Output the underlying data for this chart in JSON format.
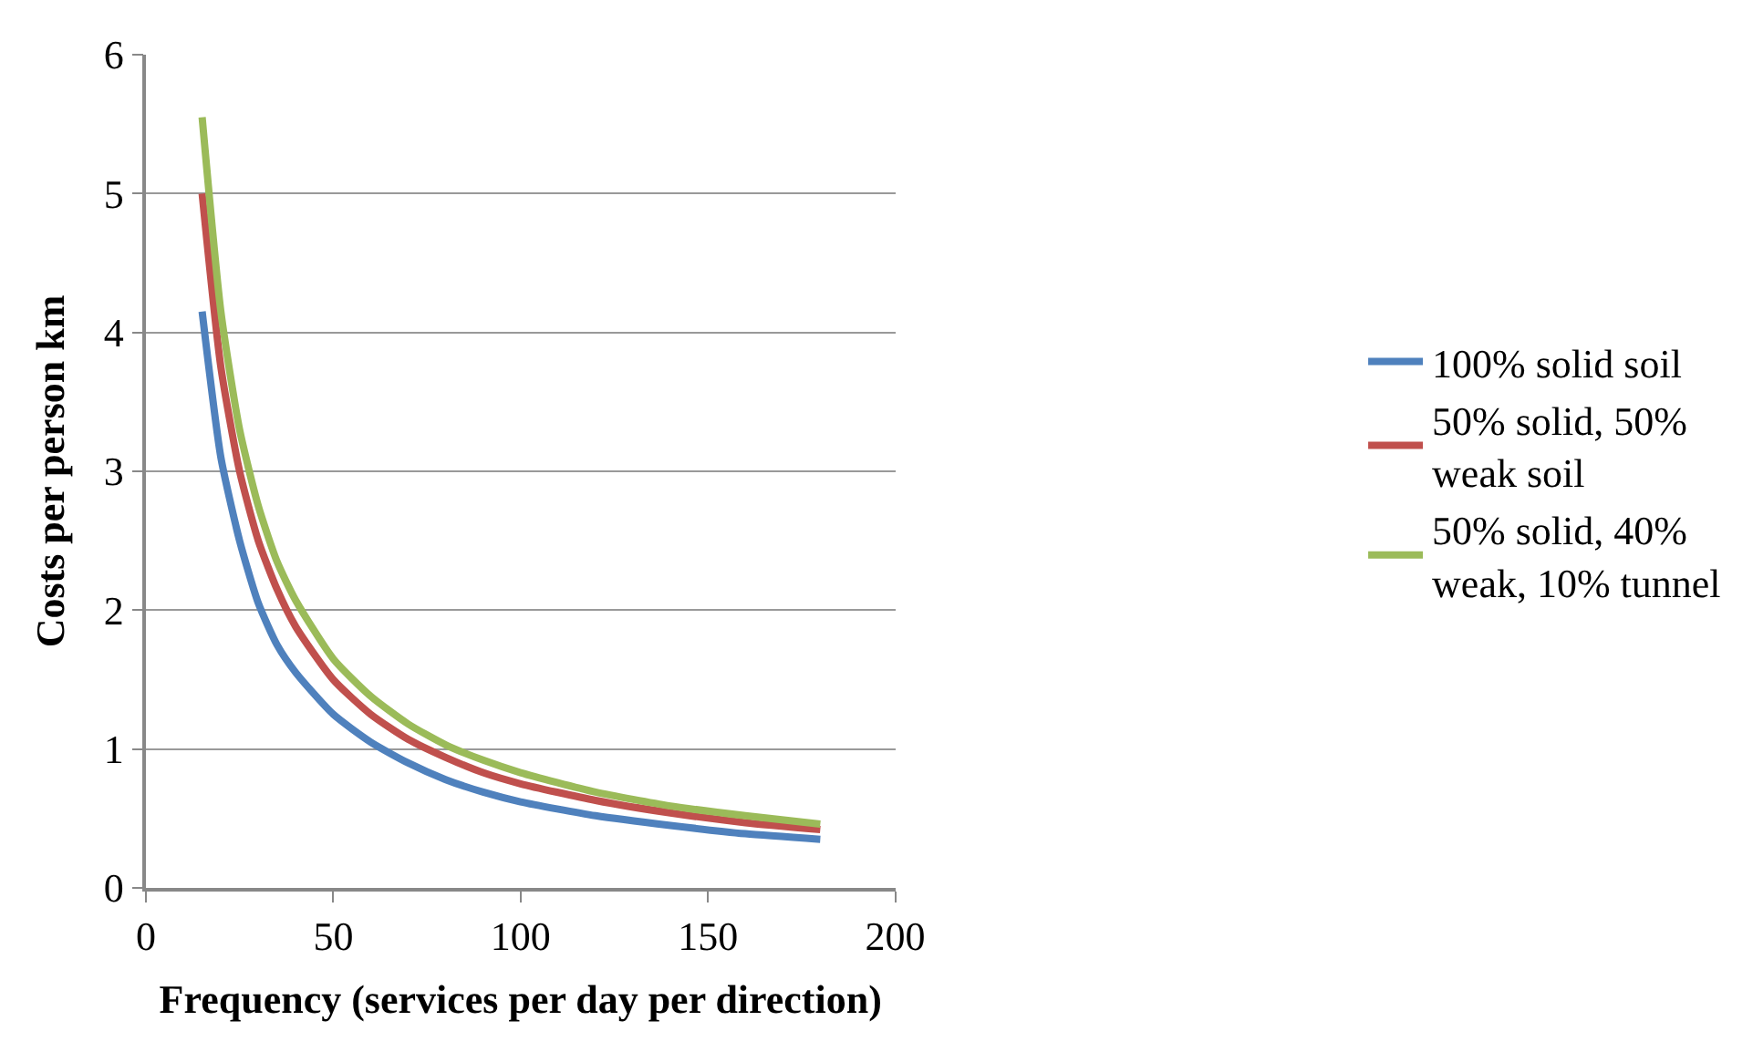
{
  "chart_data": {
    "type": "line",
    "xlabel": "Frequency (services per day per direction)",
    "ylabel": "Costs per person km",
    "x": [
      15,
      20,
      25,
      30,
      35,
      40,
      50,
      60,
      70,
      80,
      90,
      100,
      120,
      140,
      160,
      180
    ],
    "series": [
      {
        "name": "100% solid soil",
        "color": "#4f81bd",
        "values": [
          4.15,
          3.1,
          2.5,
          2.05,
          1.75,
          1.55,
          1.25,
          1.05,
          0.9,
          0.78,
          0.69,
          0.62,
          0.52,
          0.45,
          0.39,
          0.35
        ]
      },
      {
        "name": "50% solid, 50%\nweak soil",
        "color": "#c0504d",
        "values": [
          5.0,
          3.75,
          3.0,
          2.5,
          2.15,
          1.88,
          1.5,
          1.25,
          1.07,
          0.94,
          0.83,
          0.75,
          0.63,
          0.54,
          0.47,
          0.42
        ]
      },
      {
        "name": "50% solid, 40%\nweak, 10% tunnel",
        "color": "#9bbb59",
        "values": [
          5.55,
          4.15,
          3.3,
          2.75,
          2.35,
          2.07,
          1.65,
          1.38,
          1.18,
          1.03,
          0.92,
          0.83,
          0.69,
          0.59,
          0.52,
          0.46
        ]
      }
    ],
    "xlim": [
      0,
      200
    ],
    "xticks": [
      0,
      50,
      100,
      150,
      200
    ],
    "ylim": [
      0,
      6
    ],
    "yticks": [
      0,
      1,
      2,
      3,
      4,
      5,
      6
    ],
    "grid": "y",
    "legend": "right",
    "marker": "none",
    "line_style": "solid"
  }
}
